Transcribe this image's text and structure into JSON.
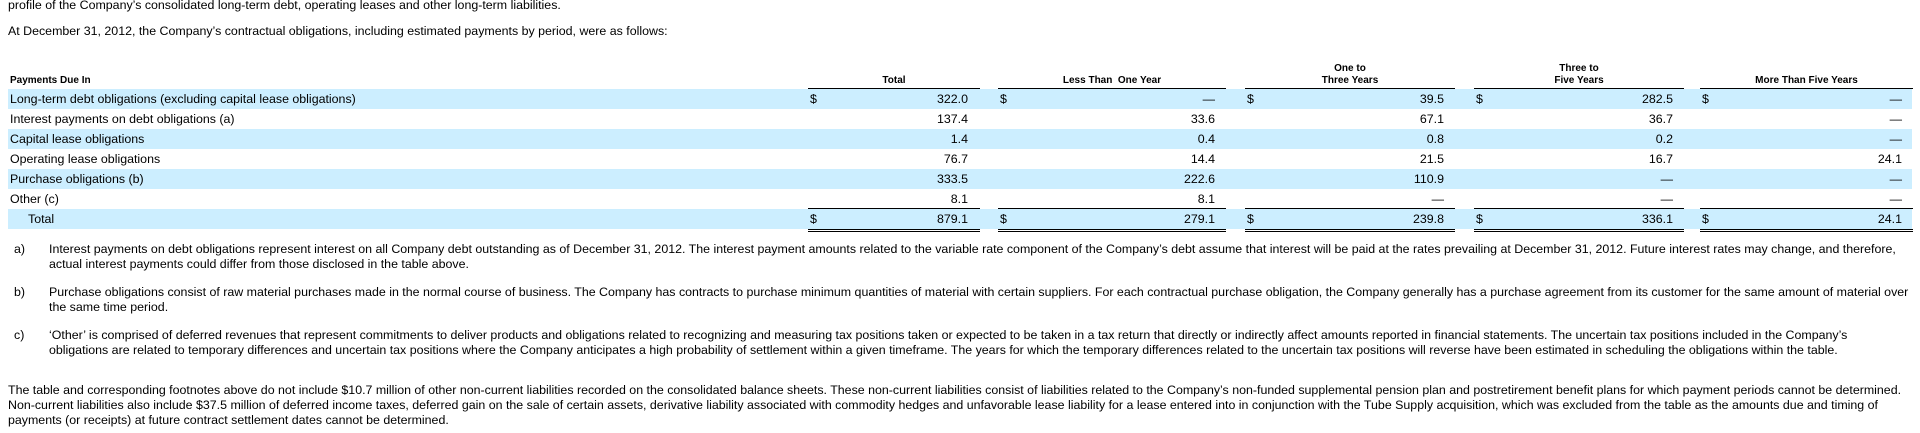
{
  "intro": {
    "partial_line": "profile of the Company’s consolidated long-term debt, operating leases and other long-term liabilities.",
    "lead": "At December 31, 2012, the Company’s contractual obligations, including estimated payments by period, were as follows:"
  },
  "table": {
    "headers": {
      "label": "Payments Due In",
      "total": "Total",
      "lt1": "Less Than  One Year",
      "one_three_a": "One to",
      "one_three_b": "Three Years",
      "three_five_a": "Three to",
      "three_five_b": "Five Years",
      "gt5": "More Than Five Years"
    },
    "currency_symbol": "$",
    "rows": [
      {
        "label": "Long-term debt obligations (excluding capital lease obligations)",
        "total": "322.0",
        "lt1": "—",
        "c13": "39.5",
        "c35": "282.5",
        "gt5": "—"
      },
      {
        "label": "Interest payments on debt obligations (a)",
        "total": "137.4",
        "lt1": "33.6",
        "c13": "67.1",
        "c35": "36.7",
        "gt5": "—"
      },
      {
        "label": "Capital lease obligations",
        "total": "1.4",
        "lt1": "0.4",
        "c13": "0.8",
        "c35": "0.2",
        "gt5": "—"
      },
      {
        "label": "Operating lease obligations",
        "total": "76.7",
        "lt1": "14.4",
        "c13": "21.5",
        "c35": "16.7",
        "gt5": "24.1"
      },
      {
        "label": "Purchase obligations (b)",
        "total": "333.5",
        "lt1": "222.6",
        "c13": "110.9",
        "c35": "—",
        "gt5": "—"
      },
      {
        "label": "Other (c)",
        "total": "8.1",
        "lt1": "8.1",
        "c13": "—",
        "c35": "—",
        "gt5": "—"
      }
    ],
    "total_row": {
      "label": "Total",
      "total": "879.1",
      "lt1": "279.1",
      "c13": "239.8",
      "c35": "336.1",
      "gt5": "24.1"
    }
  },
  "footnotes": [
    {
      "label": "a)",
      "text": "Interest payments on debt obligations represent interest on all Company debt outstanding as of December 31, 2012. The interest payment amounts related to the variable rate component of the Company’s debt assume that interest will be paid at the rates prevailing at December 31, 2012. Future interest rates may change, and therefore, actual interest payments could differ from those disclosed in the table above."
    },
    {
      "label": "b)",
      "text": "Purchase obligations consist of raw material purchases made in the normal course of business. The Company has contracts to purchase minimum quantities of material with certain suppliers. For each contractual purchase obligation, the Company generally has a purchase agreement from its customer for the same amount of material over the same time period."
    },
    {
      "label": "c)",
      "text": "‘Other’ is comprised of deferred revenues that represent commitments to deliver products and obligations related to recognizing and measuring tax positions taken or expected to be taken in a tax return that directly or indirectly affect amounts reported in financial statements. The uncertain tax positions included in the Company’s obligations are related to temporary differences and uncertain tax positions where the Company anticipates a high probability of settlement within a given timeframe. The years for which the temporary differences related to the uncertain tax positions will reverse have been estimated in scheduling the obligations within the table."
    }
  ],
  "closing": "The table and corresponding footnotes above do not include $10.7 million of other non-current liabilities recorded on the consolidated balance sheets. These non-current liabilities consist of liabilities related to the Company’s non-funded supplemental pension plan and postretirement benefit plans for which payment periods cannot be determined. Non-current liabilities also include $37.5 million of deferred income taxes, deferred gain on the sale of certain assets, derivative liability associated with commodity hedges and unfavorable lease liability for a lease entered into in conjunction with the Tube Supply acquisition, which was excluded from the table as the amounts due and timing of payments (or receipts) at future contract settlement dates cannot be determined."
}
